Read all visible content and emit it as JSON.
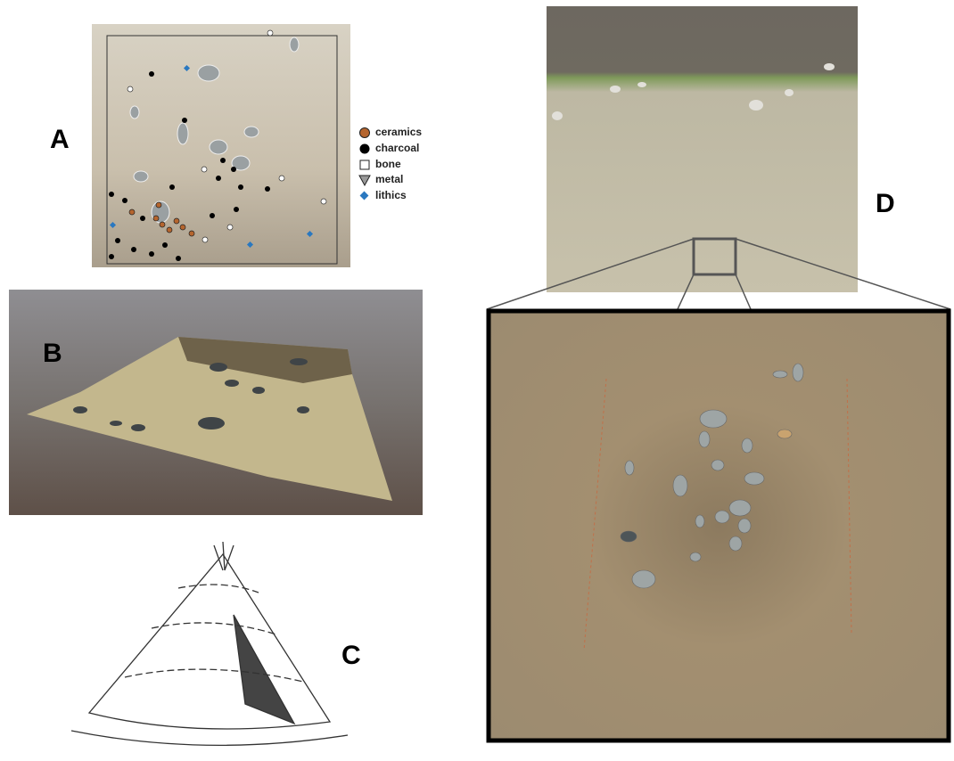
{
  "panels": [
    {
      "label": "A"
    },
    {
      "label": "B"
    },
    {
      "label": "C"
    },
    {
      "label": "D"
    }
  ],
  "legend": [
    {
      "label": "ceramics"
    },
    {
      "label": "charcoal"
    },
    {
      "label": "bone"
    },
    {
      "label": "metal"
    },
    {
      "label": "lithics"
    }
  ]
}
